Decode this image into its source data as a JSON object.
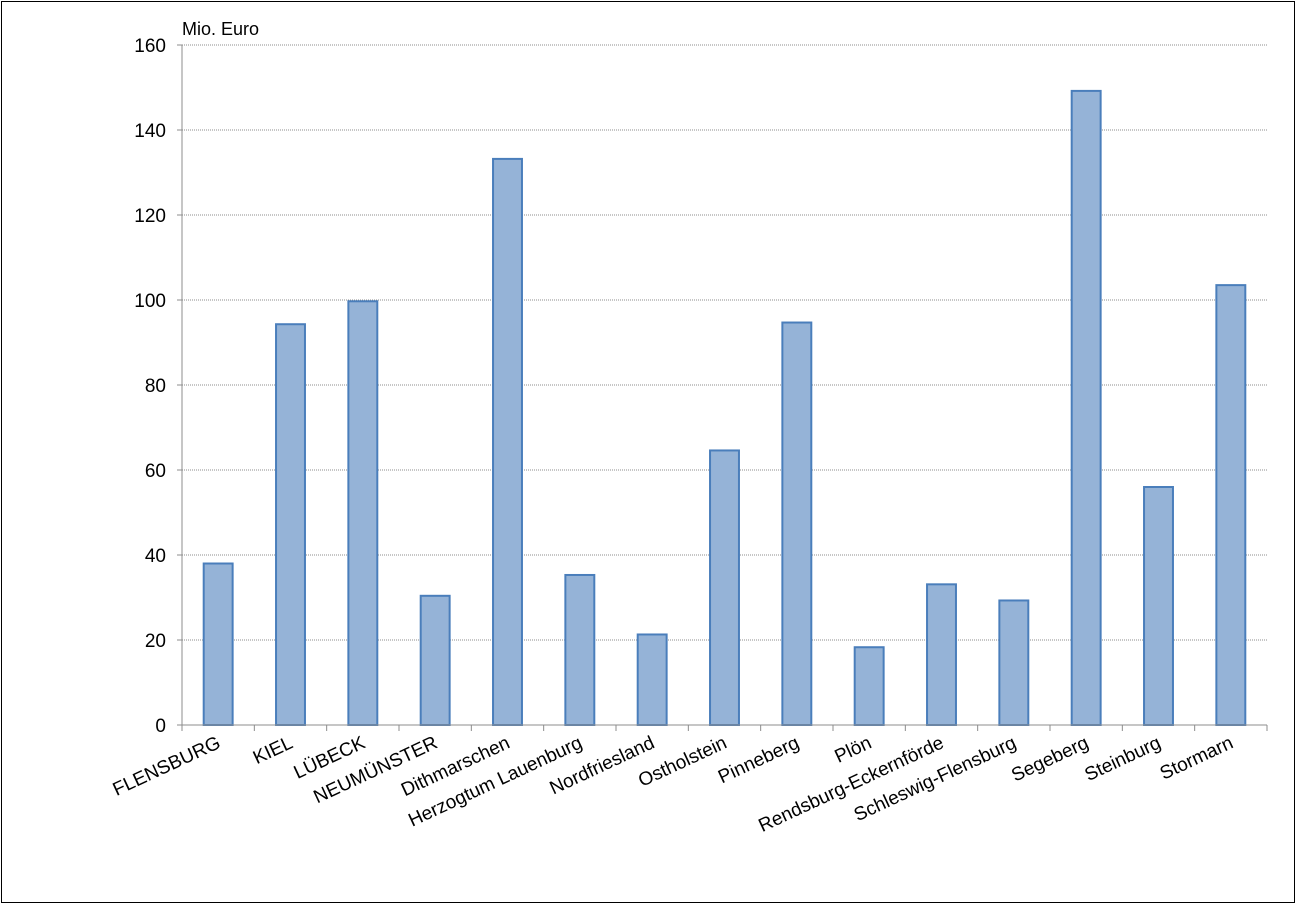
{
  "chart_data": {
    "type": "bar",
    "title": "",
    "xlabel": "",
    "ylabel": "Mio. Euro",
    "ylim": [
      0,
      160
    ],
    "yticks": [
      0,
      20,
      40,
      60,
      80,
      100,
      120,
      140,
      160
    ],
    "grid": true,
    "legend": "none",
    "colors": {
      "bar_fill": "#95b3d7",
      "bar_stroke": "#4a7ebb"
    },
    "categories": [
      "FLENSBURG",
      "KIEL",
      "LÜBECK",
      "NEUMÜNSTER",
      "Dithmarschen",
      "Herzogtum Lauenburg",
      "Nordfriesland",
      "Ostholstein",
      "Pinneberg",
      "Plön",
      "Rendsburg-Eckernförde",
      "Schleswig-Flensburg",
      "Segeberg",
      "Steinburg",
      "Stormarn"
    ],
    "values": [
      38,
      94.3,
      99.7,
      30.4,
      133.2,
      35.3,
      21.3,
      64.6,
      94.7,
      18.3,
      33.1,
      29.3,
      149.2,
      56.0,
      103.5
    ]
  }
}
